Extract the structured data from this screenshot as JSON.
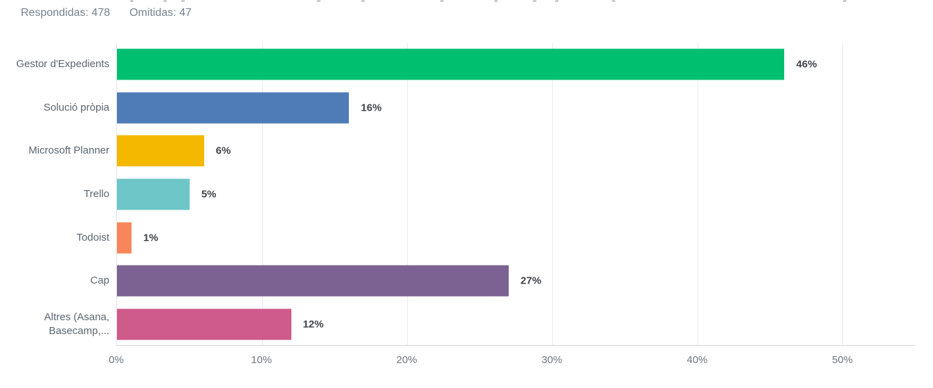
{
  "stats": {
    "answered": "Respondidas: 478",
    "skipped": "Omitidas: 47"
  },
  "chart_data": {
    "type": "bar",
    "orientation": "horizontal",
    "title": "",
    "xlabel": "",
    "ylabel": "",
    "categories": [
      "Gestor d'Expedients",
      "Solució pròpia",
      "Microsoft Planner",
      "Trello",
      "Todoist",
      "Cap",
      "Altres (Asana, Basecamp,..."
    ],
    "values": [
      46,
      16,
      6,
      5,
      1,
      27,
      12
    ],
    "value_labels": [
      "46%",
      "16%",
      "6%",
      "5%",
      "1%",
      "27%",
      "12%"
    ],
    "colors": [
      "#00bf6f",
      "#4f7cb7",
      "#f4b800",
      "#6ec6c8",
      "#f9865a",
      "#7b6292",
      "#cf5b8b"
    ],
    "xlim": [
      0,
      55
    ],
    "x_ticks": [
      "0%",
      "10%",
      "20%",
      "30%",
      "40%",
      "50%"
    ],
    "x_tick_values": [
      0,
      10,
      20,
      30,
      40,
      50
    ],
    "grid": "vertical-gridlines",
    "legend": "none"
  }
}
